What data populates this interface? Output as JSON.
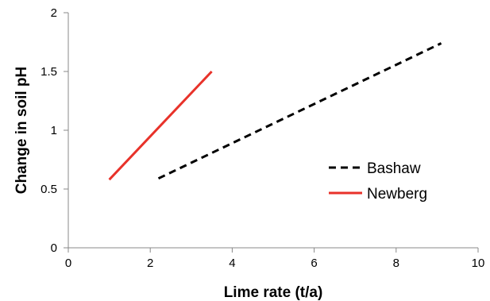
{
  "chart_data": {
    "type": "line",
    "title": "",
    "xlabel": "Lime rate (t/a)",
    "ylabel": "Change in soil pH",
    "xlim": [
      0,
      10
    ],
    "ylim": [
      0,
      2
    ],
    "x_ticks": [
      0,
      2,
      4,
      6,
      8,
      10
    ],
    "y_ticks": [
      0,
      0.5,
      1,
      1.5,
      2
    ],
    "x_tick_labels": [
      "0",
      "2",
      "4",
      "6",
      "8",
      "10"
    ],
    "y_tick_labels": [
      "0",
      "0.5",
      "1",
      "1.5",
      "2"
    ],
    "grid": false,
    "legend_position": "right",
    "series": [
      {
        "name": "Bashaw",
        "color": "#000000",
        "line_style": "dashed",
        "points": [
          {
            "x": 2.2,
            "y": 0.59
          },
          {
            "x": 9.1,
            "y": 1.74
          }
        ]
      },
      {
        "name": "Newberg",
        "color": "#e8322a",
        "line_style": "solid",
        "points": [
          {
            "x": 1.0,
            "y": 0.58
          },
          {
            "x": 3.5,
            "y": 1.5
          }
        ]
      }
    ]
  }
}
